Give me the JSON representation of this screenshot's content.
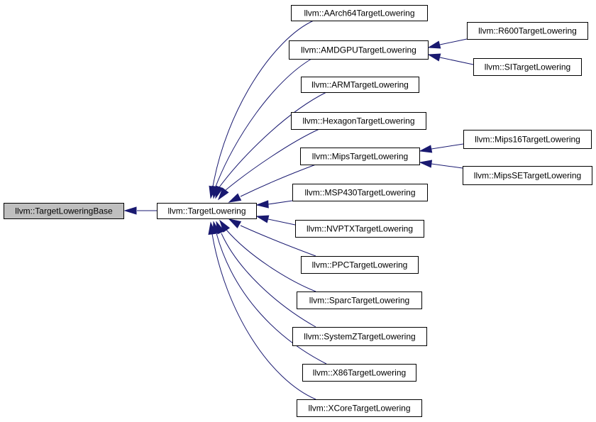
{
  "diagram": {
    "type": "inheritance-graph",
    "colors": {
      "edge": "#191970",
      "node_border": "#000000",
      "node_fill": "#ffffff",
      "root_fill": "#bfbfbf",
      "text": "#000000"
    },
    "nodes": [
      {
        "id": "base",
        "label": "llvm::TargetLoweringBase",
        "highlighted": true
      },
      {
        "id": "tl",
        "label": "llvm::TargetLowering"
      },
      {
        "id": "aarch64",
        "label": "llvm::AArch64TargetLowering"
      },
      {
        "id": "amdgpu",
        "label": "llvm::AMDGPUTargetLowering"
      },
      {
        "id": "arm",
        "label": "llvm::ARMTargetLowering"
      },
      {
        "id": "hexagon",
        "label": "llvm::HexagonTargetLowering"
      },
      {
        "id": "mips",
        "label": "llvm::MipsTargetLowering"
      },
      {
        "id": "msp430",
        "label": "llvm::MSP430TargetLowering"
      },
      {
        "id": "nvptx",
        "label": "llvm::NVPTXTargetLowering"
      },
      {
        "id": "ppc",
        "label": "llvm::PPCTargetLowering"
      },
      {
        "id": "sparc",
        "label": "llvm::SparcTargetLowering"
      },
      {
        "id": "systemz",
        "label": "llvm::SystemZTargetLowering"
      },
      {
        "id": "x86",
        "label": "llvm::X86TargetLowering"
      },
      {
        "id": "xcore",
        "label": "llvm::XCoreTargetLowering"
      },
      {
        "id": "r600",
        "label": "llvm::R600TargetLowering"
      },
      {
        "id": "si",
        "label": "llvm::SITargetLowering"
      },
      {
        "id": "mips16",
        "label": "llvm::Mips16TargetLowering"
      },
      {
        "id": "mipsse",
        "label": "llvm::MipsSETargetLowering"
      }
    ],
    "edges": [
      {
        "from": "tl",
        "to": "base"
      },
      {
        "from": "aarch64",
        "to": "tl"
      },
      {
        "from": "amdgpu",
        "to": "tl"
      },
      {
        "from": "arm",
        "to": "tl"
      },
      {
        "from": "hexagon",
        "to": "tl"
      },
      {
        "from": "mips",
        "to": "tl"
      },
      {
        "from": "msp430",
        "to": "tl"
      },
      {
        "from": "nvptx",
        "to": "tl"
      },
      {
        "from": "ppc",
        "to": "tl"
      },
      {
        "from": "sparc",
        "to": "tl"
      },
      {
        "from": "systemz",
        "to": "tl"
      },
      {
        "from": "x86",
        "to": "tl"
      },
      {
        "from": "xcore",
        "to": "tl"
      },
      {
        "from": "r600",
        "to": "amdgpu"
      },
      {
        "from": "si",
        "to": "amdgpu"
      },
      {
        "from": "mips16",
        "to": "mips"
      },
      {
        "from": "mipsse",
        "to": "mips"
      }
    ]
  }
}
